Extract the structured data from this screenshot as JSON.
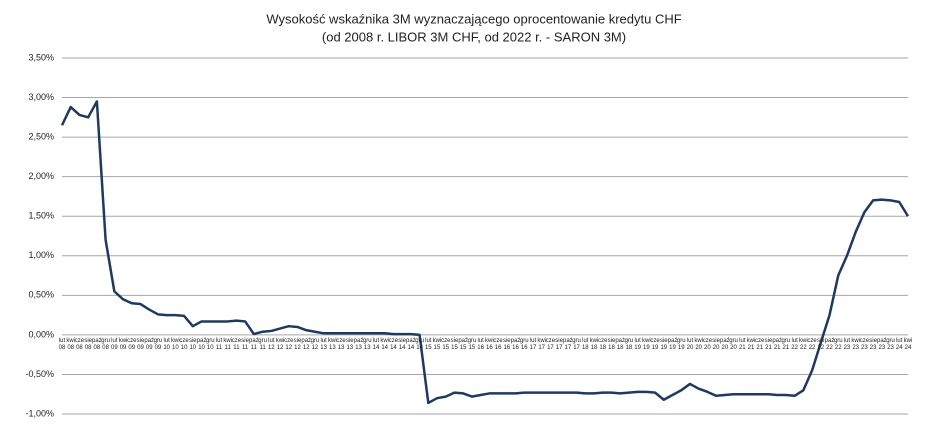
{
  "chart_data": {
    "type": "line",
    "title": "Wysokość wskaźnika 3M wyznaczającego oprocentowanie kredytu CHF",
    "subtitle": "(od 2008 r. LIBOR 3M CHF, od 2022 r. - SARON 3M)",
    "categories": [
      "lut 08",
      "kwi 08",
      "cze 08",
      "sie 08",
      "paź 08",
      "gru 08",
      "lut 09",
      "kwi 09",
      "cze 09",
      "sie 09",
      "paź 09",
      "gru 09",
      "lut 10",
      "kwi 10",
      "cze 10",
      "sie 10",
      "paź 10",
      "gru 10",
      "lut 11",
      "kwi 11",
      "cze 11",
      "sie 11",
      "paź 11",
      "gru 11",
      "lut 12",
      "kwi 12",
      "cze 12",
      "sie 12",
      "paź 12",
      "gru 12",
      "lut 13",
      "kwi 13",
      "cze 13",
      "sie 13",
      "paź 13",
      "gru 13",
      "lut 14",
      "kwi 14",
      "cze 14",
      "sie 14",
      "paź 14",
      "gru 14",
      "lut 15",
      "kwi 15",
      "cze 15",
      "sie 15",
      "paź 15",
      "gru 15",
      "lut 16",
      "kwi 16",
      "cze 16",
      "sie 16",
      "paź 16",
      "gru 16",
      "lut 17",
      "kwi 17",
      "cze 17",
      "sie 17",
      "paź 17",
      "gru 17",
      "lut 18",
      "kwi 18",
      "cze 18",
      "sie 18",
      "paź 18",
      "gru 18",
      "lut 19",
      "kwi 19",
      "cze 19",
      "sie 19",
      "paź 19",
      "gru 19",
      "lut 20",
      "kwi 20",
      "cze 20",
      "sie 20",
      "paź 20",
      "gru 20",
      "lut 21",
      "kwi 21",
      "cze 21",
      "sie 21",
      "paź 21",
      "gru 21",
      "lut 22",
      "kwi 22",
      "cze 22",
      "sie 22",
      "paź 22",
      "gru 22",
      "lut 23",
      "kwi 23",
      "cze 23",
      "sie 23",
      "paź 23",
      "gru 23",
      "lut 24",
      "kwi 24"
    ],
    "series": [
      {
        "name": "LIBOR 3M CHF / SARON 3M",
        "color": "#1f3a5f",
        "values": [
          2.65,
          2.88,
          2.78,
          2.75,
          2.95,
          1.2,
          0.55,
          0.45,
          0.4,
          0.39,
          0.32,
          0.26,
          0.25,
          0.25,
          0.24,
          0.11,
          0.17,
          0.17,
          0.17,
          0.17,
          0.18,
          0.17,
          0.01,
          0.04,
          0.05,
          0.08,
          0.11,
          0.1,
          0.06,
          0.04,
          0.02,
          0.02,
          0.02,
          0.02,
          0.02,
          0.02,
          0.02,
          0.02,
          0.01,
          0.01,
          0.01,
          0.0,
          -0.86,
          -0.8,
          -0.78,
          -0.73,
          -0.74,
          -0.78,
          -0.76,
          -0.74,
          -0.74,
          -0.74,
          -0.74,
          -0.73,
          -0.73,
          -0.73,
          -0.73,
          -0.73,
          -0.73,
          -0.73,
          -0.74,
          -0.74,
          -0.73,
          -0.73,
          -0.74,
          -0.73,
          -0.72,
          -0.72,
          -0.73,
          -0.82,
          -0.76,
          -0.7,
          -0.62,
          -0.68,
          -0.72,
          -0.77,
          -0.76,
          -0.75,
          -0.75,
          -0.75,
          -0.75,
          -0.75,
          -0.76,
          -0.76,
          -0.77,
          -0.7,
          -0.45,
          -0.1,
          0.25,
          0.75,
          1.0,
          1.3,
          1.55,
          1.7,
          1.71,
          1.7,
          1.68,
          1.5
        ]
      }
    ],
    "ylim": [
      -1,
      3.5
    ],
    "yticks": [
      {
        "value": -1,
        "label": "-1,00%"
      },
      {
        "value": -0.5,
        "label": "-0,50%"
      },
      {
        "value": 0,
        "label": "0,00%"
      },
      {
        "value": 0.5,
        "label": "0,50%"
      },
      {
        "value": 1,
        "label": "1,00%"
      },
      {
        "value": 1.5,
        "label": "1,50%"
      },
      {
        "value": 2,
        "label": "2,00%"
      },
      {
        "value": 2.5,
        "label": "2,50%"
      },
      {
        "value": 3,
        "label": "3,00%"
      },
      {
        "value": 3.5,
        "label": "3,50%"
      }
    ],
    "grid": true
  }
}
